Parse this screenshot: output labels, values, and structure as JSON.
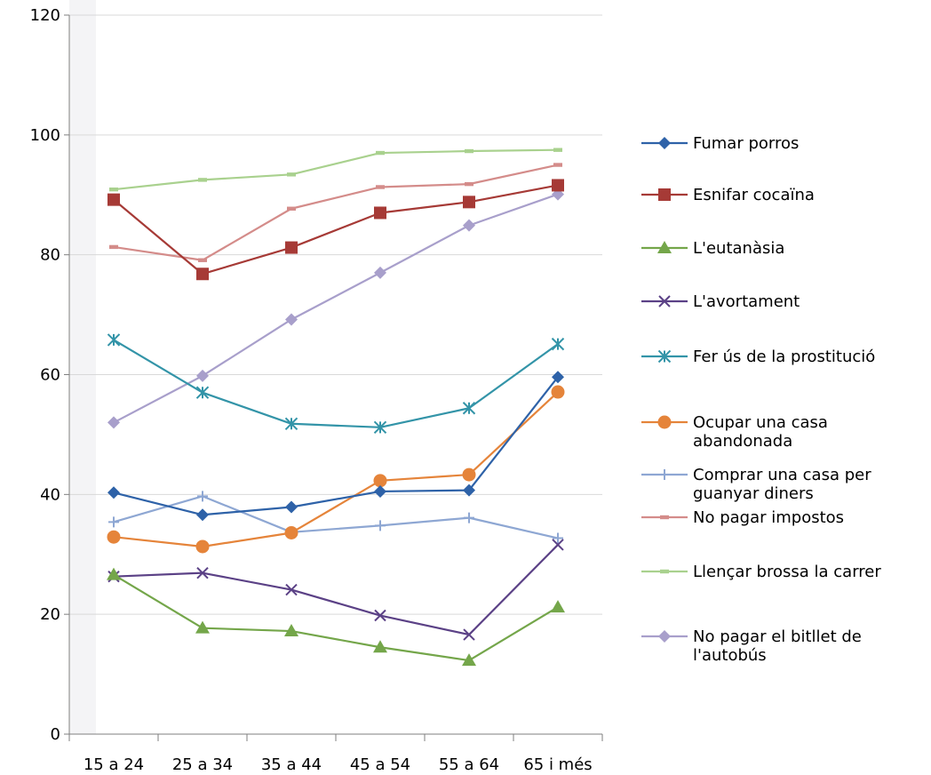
{
  "chart_data": {
    "type": "line",
    "title": "",
    "xlabel": "",
    "ylabel": "",
    "categories": [
      "15 a 24",
      "25 a 34",
      "35 a 44",
      "45 a 54",
      "55 a 64",
      "65 i més"
    ],
    "ylim": [
      0,
      120
    ],
    "yticks": [
      "0",
      "20",
      "40",
      "60",
      "80",
      "100",
      "120"
    ],
    "grid": true,
    "legend_position": "right",
    "series": [
      {
        "name": "Fumar porros",
        "color": "#2e62a8",
        "marker": "diamond",
        "values": [
          40.3,
          36.6,
          37.9,
          40.5,
          40.7,
          59.6
        ]
      },
      {
        "name": "Esnifar cocaïna",
        "color": "#a63a36",
        "marker": "square",
        "values": [
          89.2,
          76.8,
          81.2,
          87.0,
          88.8,
          91.6
        ]
      },
      {
        "name": "L'eutanàsia",
        "color": "#74a64a",
        "marker": "triangle",
        "values": [
          26.6,
          17.7,
          17.2,
          14.5,
          12.3,
          21.2
        ]
      },
      {
        "name": "L'avortament",
        "color": "#5b4186",
        "marker": "x",
        "values": [
          26.3,
          26.9,
          24.1,
          19.8,
          16.6,
          31.6
        ]
      },
      {
        "name": "Fer ús de la prostitució",
        "color": "#3394a8",
        "marker": "star",
        "values": [
          65.8,
          57.0,
          51.8,
          51.2,
          54.4,
          65.1
        ]
      },
      {
        "name": "Ocupar una casa abandonada",
        "label_lines": [
          "Ocupar una casa",
          "abandonada"
        ],
        "color": "#e5843a",
        "marker": "circle",
        "values": [
          32.9,
          31.3,
          33.6,
          42.3,
          43.3,
          57.1
        ]
      },
      {
        "name": "Comprar una casa per guanyar diners",
        "label_lines": [
          "Comprar una casa per",
          "guanyar diners"
        ],
        "color": "#8ea7d3",
        "marker": "plus",
        "values": [
          35.4,
          39.7,
          33.7,
          34.8,
          36.1,
          32.7
        ]
      },
      {
        "name": "No pagar impostos",
        "color": "#d48c8a",
        "marker": "dash",
        "values": [
          81.3,
          79.1,
          87.7,
          91.3,
          91.8,
          95.0
        ]
      },
      {
        "name": "Llençar brossa la carrer",
        "color": "#a9d18e",
        "marker": "dash",
        "values": [
          90.9,
          92.5,
          93.4,
          97.0,
          97.3,
          97.5
        ]
      },
      {
        "name": "No pagar el bitllet de l'autobús",
        "label_lines": [
          "No pagar el bitllet de",
          "l'autobús"
        ],
        "color": "#a89fcb",
        "marker": "diamond",
        "values": [
          52.0,
          59.8,
          69.2,
          77.0,
          84.9,
          90.1
        ]
      }
    ]
  }
}
